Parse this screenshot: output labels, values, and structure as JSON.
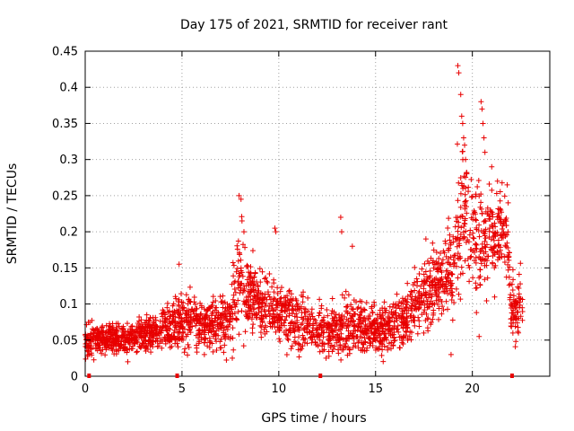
{
  "chart_data": {
    "type": "scatter",
    "title": "Day 175 of 2021, SRMTID for receiver rant",
    "xlabel": "GPS time / hours",
    "ylabel": "SRMTID / TECUs",
    "xlim": [
      0,
      24
    ],
    "ylim": [
      0,
      0.45
    ],
    "xticks": [
      "0",
      "5",
      "10",
      "15",
      "20"
    ],
    "xtick_values": [
      0,
      5,
      10,
      15,
      20
    ],
    "yticks": [
      "0",
      "0.05",
      "0.1",
      "0.15",
      "0.2",
      "0.25",
      "0.3",
      "0.35",
      "0.4",
      "0.45"
    ],
    "ytick_values": [
      0,
      0.05,
      0.1,
      0.15,
      0.2,
      0.25,
      0.3,
      0.35,
      0.4,
      0.45
    ],
    "grid": true,
    "marker": "+",
    "color": "#e80000",
    "x_range_of_data": [
      0,
      22.6
    ],
    "data_gap_markers_x": [
      0.2,
      4.75,
      12.15,
      22.05
    ],
    "envelope": {
      "description_hours": [
        0,
        0.5,
        1,
        1.5,
        2,
        2.5,
        3,
        3.5,
        4,
        4.5,
        5,
        5.5,
        6,
        6.5,
        7,
        7.5,
        7.8,
        8,
        8.2,
        8.5,
        9,
        9.5,
        10,
        10.5,
        11,
        11.5,
        12,
        12.5,
        13,
        13.5,
        14,
        14.5,
        15,
        15.5,
        16,
        16.5,
        17,
        17.5,
        18,
        18.5,
        19,
        19.3,
        19.5,
        19.8,
        20,
        20.3,
        20.5,
        20.8,
        21,
        21.3,
        21.5,
        21.8,
        22,
        22.3,
        22.6
      ],
      "median": [
        0.05,
        0.05,
        0.05,
        0.055,
        0.05,
        0.055,
        0.06,
        0.06,
        0.065,
        0.07,
        0.075,
        0.08,
        0.07,
        0.07,
        0.075,
        0.08,
        0.12,
        0.14,
        0.12,
        0.11,
        0.1,
        0.1,
        0.09,
        0.08,
        0.075,
        0.07,
        0.065,
        0.06,
        0.065,
        0.07,
        0.07,
        0.065,
        0.065,
        0.065,
        0.07,
        0.08,
        0.1,
        0.11,
        0.12,
        0.13,
        0.15,
        0.2,
        0.23,
        0.21,
        0.2,
        0.2,
        0.19,
        0.18,
        0.19,
        0.2,
        0.2,
        0.19,
        0.1,
        0.1,
        0.11
      ],
      "spread": [
        0.02,
        0.015,
        0.015,
        0.015,
        0.015,
        0.015,
        0.02,
        0.02,
        0.02,
        0.025,
        0.03,
        0.03,
        0.025,
        0.025,
        0.03,
        0.03,
        0.05,
        0.06,
        0.05,
        0.04,
        0.035,
        0.035,
        0.035,
        0.03,
        0.03,
        0.025,
        0.025,
        0.025,
        0.025,
        0.03,
        0.03,
        0.025,
        0.025,
        0.025,
        0.03,
        0.03,
        0.035,
        0.035,
        0.04,
        0.04,
        0.05,
        0.08,
        0.07,
        0.06,
        0.06,
        0.07,
        0.06,
        0.05,
        0.05,
        0.05,
        0.045,
        0.04,
        0.035,
        0.035,
        0.035
      ]
    },
    "spikes": [
      {
        "x": 4.85,
        "y": 0.155
      },
      {
        "x": 7.95,
        "y": 0.25
      },
      {
        "x": 8.05,
        "y": 0.245
      },
      {
        "x": 8.1,
        "y": 0.215
      },
      {
        "x": 8.2,
        "y": 0.2
      },
      {
        "x": 9.8,
        "y": 0.205
      },
      {
        "x": 9.85,
        "y": 0.2
      },
      {
        "x": 13.2,
        "y": 0.22
      },
      {
        "x": 13.25,
        "y": 0.2
      },
      {
        "x": 13.8,
        "y": 0.18
      },
      {
        "x": 17.6,
        "y": 0.19
      },
      {
        "x": 19.25,
        "y": 0.43
      },
      {
        "x": 19.3,
        "y": 0.42
      },
      {
        "x": 19.4,
        "y": 0.39
      },
      {
        "x": 19.45,
        "y": 0.36
      },
      {
        "x": 19.5,
        "y": 0.35
      },
      {
        "x": 19.55,
        "y": 0.33
      },
      {
        "x": 19.6,
        "y": 0.32
      },
      {
        "x": 19.65,
        "y": 0.3
      },
      {
        "x": 20.45,
        "y": 0.38
      },
      {
        "x": 20.5,
        "y": 0.37
      },
      {
        "x": 20.55,
        "y": 0.35
      },
      {
        "x": 20.6,
        "y": 0.33
      },
      {
        "x": 20.65,
        "y": 0.31
      },
      {
        "x": 21.0,
        "y": 0.29
      },
      {
        "x": 21.3,
        "y": 0.27
      },
      {
        "x": 21.8,
        "y": 0.265
      },
      {
        "x": 21.85,
        "y": 0.24
      },
      {
        "x": 18.9,
        "y": 0.03
      },
      {
        "x": 20.35,
        "y": 0.055
      },
      {
        "x": 7.6,
        "y": 0.025
      },
      {
        "x": 2.2,
        "y": 0.02
      }
    ]
  }
}
